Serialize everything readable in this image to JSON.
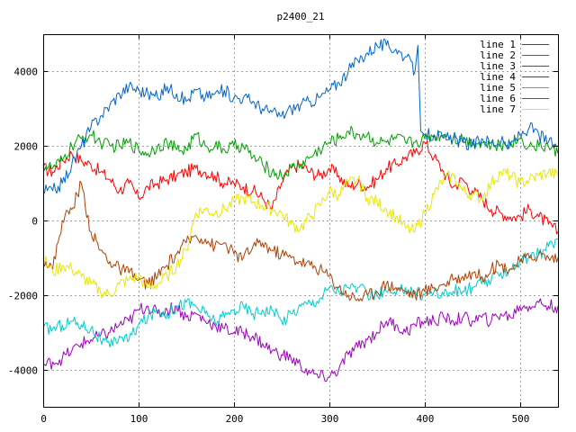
{
  "chart_data": {
    "type": "line",
    "title": "p2400_21",
    "xlabel": "",
    "ylabel": "",
    "xlim": [
      0,
      540
    ],
    "ylim": [
      -5000,
      5000
    ],
    "xticks": [
      0,
      100,
      200,
      300,
      400,
      500
    ],
    "yticks": [
      -4000,
      -2000,
      0,
      2000,
      4000
    ],
    "xtick_labels": [
      "0",
      "100",
      "200",
      "300",
      "400",
      "500"
    ],
    "ytick_labels": [
      "-4000",
      "-2000",
      "0",
      "2000",
      "4000"
    ],
    "grid": true,
    "legend_position": "top-right",
    "series": [
      {
        "name": "line 1",
        "color": "#ff0000",
        "x": [
          0,
          10,
          20,
          30,
          40,
          50,
          60,
          70,
          80,
          90,
          100,
          110,
          120,
          130,
          140,
          150,
          160,
          170,
          180,
          190,
          200,
          210,
          220,
          230,
          240,
          250,
          260,
          270,
          280,
          290,
          300,
          310,
          320,
          330,
          340,
          350,
          360,
          370,
          380,
          390,
          400,
          410,
          420,
          430,
          440,
          450,
          460,
          470,
          480,
          490,
          500,
          510,
          520,
          530,
          540
        ],
        "y": [
          1400,
          1300,
          1600,
          1800,
          1600,
          1500,
          1300,
          1100,
          800,
          1000,
          600,
          900,
          1000,
          1100,
          1200,
          1300,
          1400,
          1300,
          1200,
          1000,
          1000,
          900,
          800,
          600,
          300,
          1000,
          1400,
          1500,
          1300,
          1200,
          1400,
          1200,
          900,
          1000,
          900,
          1100,
          1400,
          1500,
          1700,
          1800,
          2100,
          1700,
          1300,
          900,
          1100,
          800,
          600,
          300,
          200,
          100,
          100,
          300,
          100,
          -100,
          -300
        ]
      },
      {
        "name": "line 2",
        "color": "#00a000",
        "x": [
          0,
          10,
          20,
          30,
          40,
          50,
          60,
          70,
          80,
          90,
          100,
          110,
          120,
          130,
          140,
          150,
          160,
          170,
          180,
          190,
          200,
          210,
          220,
          230,
          240,
          250,
          260,
          270,
          280,
          290,
          300,
          310,
          320,
          330,
          340,
          350,
          360,
          370,
          380,
          390,
          400,
          410,
          420,
          430,
          440,
          450,
          460,
          470,
          480,
          490,
          500,
          510,
          520,
          530,
          540
        ],
        "y": [
          1500,
          1400,
          1600,
          2000,
          2200,
          2300,
          2100,
          2000,
          2000,
          2100,
          1900,
          1800,
          2000,
          2100,
          1900,
          1900,
          2300,
          2000,
          2000,
          1900,
          2000,
          2000,
          1700,
          1500,
          1300,
          1200,
          1400,
          1500,
          1700,
          1900,
          2100,
          2200,
          2400,
          2300,
          2300,
          2100,
          2100,
          2200,
          2100,
          2100,
          2200,
          2300,
          2300,
          2200,
          2200,
          2100,
          2100,
          2000,
          2000,
          2100,
          2200,
          2000,
          2000,
          2000,
          1800
        ]
      },
      {
        "name": "line 3",
        "color": "#0066cc",
        "x": [
          0,
          10,
          20,
          30,
          40,
          50,
          60,
          70,
          80,
          90,
          100,
          110,
          120,
          130,
          140,
          150,
          160,
          170,
          180,
          190,
          200,
          210,
          220,
          230,
          240,
          250,
          260,
          270,
          280,
          290,
          300,
          310,
          320,
          330,
          340,
          350,
          360,
          370,
          380,
          390,
          393,
          396,
          400,
          410,
          420,
          430,
          440,
          450,
          460,
          470,
          480,
          490,
          500,
          510,
          520,
          530,
          540
        ],
        "y": [
          800,
          800,
          1000,
          1500,
          2000,
          2500,
          2800,
          3100,
          3400,
          3600,
          3500,
          3400,
          3300,
          3600,
          3400,
          3200,
          3500,
          3300,
          3400,
          3500,
          3300,
          3300,
          3200,
          3000,
          2900,
          2800,
          3000,
          3100,
          3200,
          3300,
          3500,
          3700,
          4000,
          4300,
          4500,
          4700,
          4700,
          4600,
          4400,
          4000,
          4700,
          2400,
          2300,
          2300,
          2200,
          2200,
          2100,
          2000,
          2200,
          2100,
          2100,
          2000,
          2300,
          2500,
          2300,
          2100,
          2000
        ]
      },
      {
        "name": "line 4",
        "color": "#a000c0",
        "x": [
          0,
          10,
          20,
          30,
          40,
          50,
          60,
          70,
          80,
          90,
          100,
          110,
          120,
          130,
          140,
          150,
          160,
          170,
          180,
          190,
          200,
          210,
          220,
          230,
          240,
          250,
          260,
          270,
          280,
          290,
          300,
          310,
          320,
          330,
          340,
          350,
          360,
          370,
          380,
          390,
          400,
          410,
          420,
          430,
          440,
          450,
          460,
          470,
          480,
          490,
          500,
          510,
          520,
          530,
          540
        ],
        "y": [
          -3900,
          -3800,
          -3700,
          -3500,
          -3300,
          -3200,
          -3100,
          -3000,
          -2800,
          -2700,
          -2400,
          -2300,
          -2500,
          -2400,
          -2300,
          -2600,
          -2500,
          -2700,
          -2800,
          -2900,
          -3000,
          -3000,
          -3100,
          -3300,
          -3500,
          -3600,
          -3700,
          -3900,
          -4100,
          -4200,
          -4200,
          -4000,
          -3600,
          -3400,
          -3200,
          -3000,
          -2700,
          -2800,
          -3000,
          -2800,
          -2700,
          -2700,
          -2600,
          -2700,
          -2600,
          -2700,
          -2600,
          -2700,
          -2500,
          -2600,
          -2300,
          -2300,
          -2200,
          -2300,
          -2300
        ]
      },
      {
        "name": "line 5",
        "color": "#00cccc",
        "x": [
          0,
          10,
          20,
          30,
          40,
          50,
          60,
          70,
          80,
          90,
          100,
          110,
          120,
          130,
          140,
          150,
          160,
          170,
          180,
          190,
          200,
          210,
          220,
          230,
          240,
          250,
          260,
          270,
          280,
          290,
          300,
          310,
          320,
          330,
          340,
          350,
          360,
          370,
          380,
          390,
          400,
          410,
          420,
          430,
          440,
          450,
          460,
          470,
          480,
          490,
          500,
          510,
          520,
          530,
          540
        ],
        "y": [
          -2900,
          -2900,
          -2800,
          -2700,
          -2800,
          -2900,
          -3200,
          -3400,
          -3100,
          -3200,
          -2800,
          -2600,
          -2400,
          -2500,
          -2300,
          -2200,
          -2300,
          -2500,
          -2700,
          -2600,
          -2400,
          -2300,
          -2500,
          -2400,
          -2400,
          -2700,
          -2500,
          -2300,
          -2200,
          -2100,
          -1800,
          -1900,
          -1800,
          -1800,
          -2000,
          -2000,
          -1900,
          -2000,
          -1800,
          -1900,
          -2000,
          -1900,
          -2000,
          -1900,
          -1900,
          -1800,
          -1700,
          -1600,
          -1400,
          -1300,
          -1100,
          -1000,
          -900,
          -700,
          -500
        ]
      },
      {
        "name": "line 6",
        "color": "#b04000",
        "x": [
          0,
          10,
          20,
          30,
          40,
          50,
          60,
          70,
          80,
          90,
          100,
          110,
          120,
          130,
          140,
          150,
          160,
          170,
          180,
          190,
          200,
          210,
          220,
          230,
          240,
          250,
          260,
          270,
          280,
          290,
          300,
          310,
          320,
          330,
          340,
          350,
          360,
          370,
          380,
          390,
          400,
          410,
          420,
          430,
          440,
          450,
          460,
          470,
          480,
          490,
          500,
          510,
          520,
          530,
          540
        ],
        "y": [
          -1000,
          -1300,
          0,
          300,
          1000,
          -300,
          -800,
          -1100,
          -1300,
          -1400,
          -1600,
          -1700,
          -1500,
          -1200,
          -900,
          -600,
          -400,
          -500,
          -700,
          -600,
          -900,
          -1000,
          -700,
          -600,
          -800,
          -900,
          -1000,
          -1100,
          -1200,
          -1300,
          -1500,
          -1800,
          -2000,
          -2100,
          -2000,
          -1900,
          -1700,
          -1800,
          -1900,
          -2000,
          -1900,
          -1800,
          -1700,
          -1600,
          -1500,
          -1400,
          -1500,
          -1300,
          -1200,
          -1300,
          -1100,
          -1000,
          -900,
          -1000,
          -1000
        ]
      },
      {
        "name": "line 7",
        "color": "#e8e800",
        "x": [
          0,
          10,
          20,
          30,
          40,
          50,
          60,
          70,
          80,
          90,
          100,
          110,
          120,
          130,
          140,
          150,
          160,
          170,
          180,
          190,
          200,
          210,
          220,
          230,
          240,
          250,
          260,
          270,
          280,
          290,
          300,
          310,
          320,
          330,
          340,
          350,
          360,
          370,
          380,
          390,
          400,
          410,
          420,
          430,
          440,
          450,
          460,
          470,
          480,
          490,
          500,
          510,
          520,
          530,
          540
        ],
        "y": [
          -1000,
          -1400,
          -1200,
          -1300,
          -1500,
          -1700,
          -1900,
          -2000,
          -1700,
          -1600,
          -1500,
          -1800,
          -1700,
          -1500,
          -1200,
          -800,
          200,
          300,
          200,
          300,
          500,
          600,
          500,
          400,
          300,
          200,
          -100,
          -200,
          100,
          400,
          800,
          700,
          1000,
          1100,
          600,
          500,
          300,
          100,
          -200,
          -300,
          200,
          700,
          1100,
          1200,
          800,
          700,
          600,
          1000,
          1300,
          1200,
          1000,
          1100,
          1200,
          1300,
          1200
        ]
      }
    ]
  }
}
